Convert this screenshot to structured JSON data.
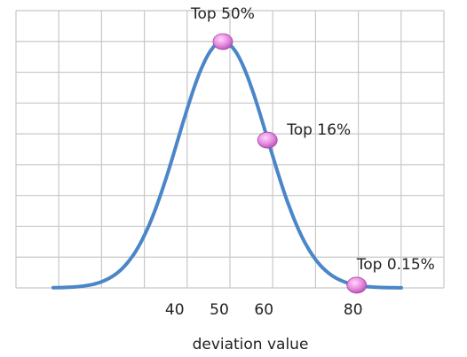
{
  "chart_data": {
    "type": "line",
    "title": "",
    "xlabel": "deviation value",
    "ylabel": "",
    "xlim": [
      10,
      100
    ],
    "ylim": [
      0,
      1.1
    ],
    "grid": true,
    "x_ticks": [
      40,
      50,
      60,
      80
    ],
    "x_tick_labels": [
      "40",
      "50",
      "60",
      "80"
    ],
    "series": [
      {
        "mean": 50,
        "sd": 10,
        "x_range": [
          12,
          90
        ],
        "color": "#4a86c8"
      }
    ],
    "points": [
      {
        "x": 50,
        "y": 1.0,
        "label": "Top 50%"
      },
      {
        "x": 60,
        "y": 0.6,
        "label": "Top 16%"
      },
      {
        "x": 80,
        "y": 0.011,
        "label": "Top 0.15%"
      }
    ],
    "marker_color": "#e78be0",
    "grid_color": "#c8c8c8"
  }
}
